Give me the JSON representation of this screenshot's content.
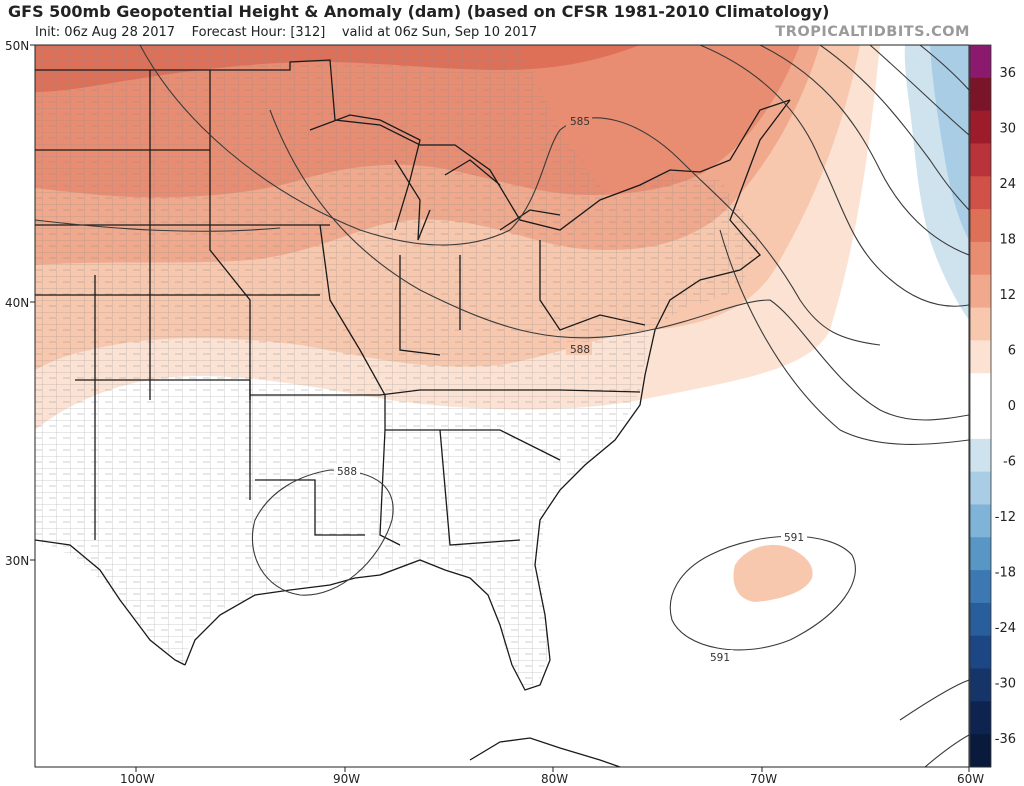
{
  "header": {
    "title": "GFS 500mb Geopotential Height & Anomaly (dam) (based on CFSR 1981-2010 Climatology)",
    "init": "Init: 06z Aug 28 2017",
    "forecast_hour": "Forecast Hour: [312]",
    "valid": "valid at 06z Sun, Sep 10 2017",
    "watermark": "TROPICALTIDBITS.COM"
  },
  "map": {
    "lat_labels": [
      "50N",
      "40N",
      "30N"
    ],
    "lon_labels": [
      "100W",
      "90W",
      "80W",
      "70W",
      "60W"
    ],
    "contour_labels": [
      "585",
      "588",
      "588",
      "591",
      "591"
    ],
    "colorbar": {
      "ticks": [
        "36",
        "30",
        "24",
        "18",
        "12",
        "6",
        "0",
        "-6",
        "-12",
        "-18",
        "-24",
        "-30",
        "-36"
      ],
      "colors": [
        "#8b1a6e",
        "#7a1428",
        "#9c1c2c",
        "#b8333a",
        "#cf5148",
        "#de7058",
        "#e98d72",
        "#f0a98d",
        "#f7c7ae",
        "#fbe2d2",
        "#ffffff",
        "#ffffff",
        "#cfe3ef",
        "#a9cde5",
        "#7fb4d8",
        "#5896c5",
        "#3c79b2",
        "#285e9c",
        "#1c4784",
        "#153468",
        "#0e2350",
        "#0a1a3c"
      ]
    },
    "colors": {
      "land_border": "#1a1a1a",
      "county": "#8a8a8a",
      "contour": "#3a3a3a",
      "anom_6": "#fbe2d2",
      "anom_12": "#f7c7ae",
      "anom_18": "#f0a98d",
      "anom_24": "#e98d72",
      "anom_30": "#de7058",
      "neg_6": "#cfe3ef",
      "neg_12": "#a9cde5"
    }
  }
}
